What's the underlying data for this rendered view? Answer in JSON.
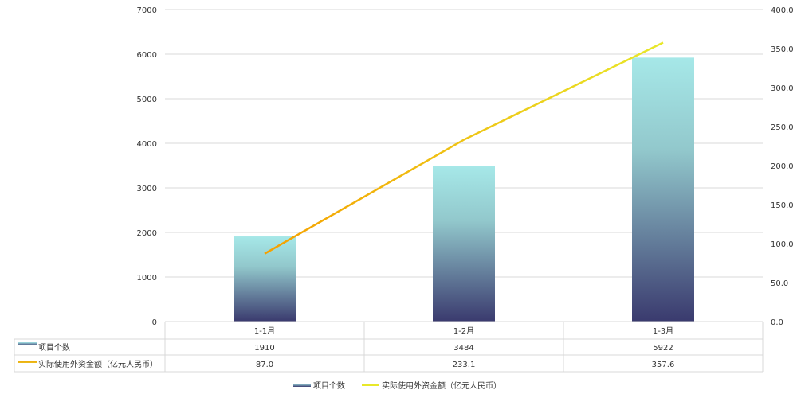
{
  "chart_data": {
    "type": "bar+line",
    "categories": [
      "1-1月",
      "1-2月",
      "1-3月"
    ],
    "series": [
      {
        "name": "项目个数",
        "type": "bar",
        "axis": "left",
        "values": [
          1910,
          3484,
          5922
        ],
        "labels": [
          "1910",
          "3484",
          "5922"
        ],
        "color_top": "#a6e8e8",
        "color_bottom": "#3a3a6e"
      },
      {
        "name": "实际使用外资金额（亿元人民币）",
        "type": "line",
        "axis": "right",
        "values": [
          87.0,
          233.1,
          357.6
        ],
        "labels": [
          "87.0",
          "233.1",
          "357.6"
        ],
        "color_start": "#f5a000",
        "color_end": "#e8e82a"
      }
    ],
    "left_axis": {
      "range": [
        0,
        7000
      ],
      "ticks": [
        "0",
        "1000",
        "2000",
        "3000",
        "4000",
        "5000",
        "6000",
        "7000"
      ]
    },
    "right_axis": {
      "range": [
        0,
        400
      ],
      "ticks": [
        "0.0",
        "50.0",
        "100.0",
        "150.0",
        "200.0",
        "250.0",
        "300.0",
        "350.0",
        "400.0"
      ]
    },
    "grid": true,
    "data_table": true,
    "legend": "bottom-center"
  }
}
